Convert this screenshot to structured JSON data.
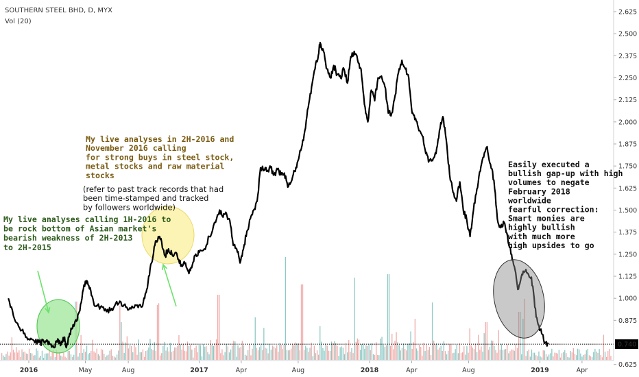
{
  "chart_data": {
    "type": "line",
    "title": "SOUTHERN STEEL BHD, D, MYX",
    "volume_label": "Vol (20)",
    "price_label": {
      "value": "0.740",
      "price": 0.74
    },
    "y_ticks": [
      "2.625",
      "2.500",
      "2.375",
      "2.250",
      "2.125",
      "2.000",
      "1.875",
      "1.750",
      "1.625",
      "1.500",
      "1.375",
      "1.250",
      "1.125",
      "1.000",
      "0.875",
      "0.625"
    ],
    "ylim": [
      0.6,
      2.68
    ],
    "x_ticks": [
      {
        "label": "2016",
        "year": true,
        "t": 0
      },
      {
        "label": "May",
        "year": false,
        "t": 0.332
      },
      {
        "label": "Aug",
        "year": false,
        "t": 0.584
      },
      {
        "label": "2017",
        "year": true,
        "t": 1.0
      },
      {
        "label": "Apr",
        "year": false,
        "t": 1.247
      },
      {
        "label": "Aug",
        "year": false,
        "t": 1.581
      },
      {
        "label": "2018",
        "year": true,
        "t": 2.0
      },
      {
        "label": "Apr",
        "year": false,
        "t": 2.247
      },
      {
        "label": "Aug",
        "year": false,
        "t": 2.581
      },
      {
        "label": "2019",
        "year": true,
        "t": 3.0
      },
      {
        "label": "Apr",
        "year": false,
        "t": 3.247
      }
    ],
    "series": [
      {
        "values": [
          [
            -0.12,
            1.0
          ],
          [
            -0.09,
            0.9
          ],
          [
            -0.06,
            0.84
          ],
          [
            -0.03,
            0.8
          ],
          [
            0.0,
            0.77
          ],
          [
            0.03,
            0.76
          ],
          [
            0.06,
            0.75
          ],
          [
            0.09,
            0.75
          ],
          [
            0.11,
            0.76
          ],
          [
            0.13,
            0.74
          ],
          [
            0.15,
            0.72
          ],
          [
            0.17,
            0.77
          ],
          [
            0.19,
            0.74
          ],
          [
            0.21,
            0.78
          ],
          [
            0.22,
            0.72
          ],
          [
            0.24,
            0.8
          ],
          [
            0.26,
            0.85
          ],
          [
            0.28,
            0.87
          ],
          [
            0.3,
            0.93
          ],
          [
            0.32,
            1.05
          ],
          [
            0.34,
            1.1
          ],
          [
            0.36,
            1.06
          ],
          [
            0.38,
            0.98
          ],
          [
            0.4,
            0.96
          ],
          [
            0.42,
            0.95
          ],
          [
            0.45,
            0.94
          ],
          [
            0.48,
            0.93
          ],
          [
            0.51,
            0.97
          ],
          [
            0.54,
            0.98
          ],
          [
            0.57,
            0.95
          ],
          [
            0.6,
            0.94
          ],
          [
            0.63,
            0.96
          ],
          [
            0.66,
            0.95
          ],
          [
            0.68,
            1.0
          ],
          [
            0.7,
            1.09
          ],
          [
            0.72,
            1.2
          ],
          [
            0.74,
            1.3
          ],
          [
            0.76,
            1.35
          ],
          [
            0.78,
            1.32
          ],
          [
            0.8,
            1.24
          ],
          [
            0.82,
            1.28
          ],
          [
            0.84,
            1.25
          ],
          [
            0.86,
            1.26
          ],
          [
            0.88,
            1.22
          ],
          [
            0.9,
            1.18
          ],
          [
            0.92,
            1.2
          ],
          [
            0.94,
            1.14
          ],
          [
            0.96,
            1.19
          ],
          [
            0.98,
            1.25
          ],
          [
            1.0,
            1.26
          ],
          [
            1.03,
            1.28
          ],
          [
            1.06,
            1.35
          ],
          [
            1.09,
            1.43
          ],
          [
            1.12,
            1.5
          ],
          [
            1.14,
            1.46
          ],
          [
            1.16,
            1.48
          ],
          [
            1.18,
            1.44
          ],
          [
            1.2,
            1.3
          ],
          [
            1.22,
            1.28
          ],
          [
            1.24,
            1.2
          ],
          [
            1.26,
            1.28
          ],
          [
            1.28,
            1.38
          ],
          [
            1.3,
            1.45
          ],
          [
            1.32,
            1.5
          ],
          [
            1.34,
            1.55
          ],
          [
            1.36,
            1.74
          ],
          [
            1.38,
            1.73
          ],
          [
            1.4,
            1.72
          ],
          [
            1.42,
            1.74
          ],
          [
            1.44,
            1.7
          ],
          [
            1.46,
            1.73
          ],
          [
            1.48,
            1.7
          ],
          [
            1.5,
            1.71
          ],
          [
            1.52,
            1.63
          ],
          [
            1.54,
            1.66
          ],
          [
            1.56,
            1.72
          ],
          [
            1.58,
            1.78
          ],
          [
            1.6,
            1.85
          ],
          [
            1.62,
            1.95
          ],
          [
            1.64,
            2.08
          ],
          [
            1.66,
            2.2
          ],
          [
            1.68,
            2.3
          ],
          [
            1.7,
            2.38
          ],
          [
            1.71,
            2.45
          ],
          [
            1.73,
            2.4
          ],
          [
            1.75,
            2.3
          ],
          [
            1.77,
            2.25
          ],
          [
            1.79,
            2.32
          ],
          [
            1.81,
            2.27
          ],
          [
            1.83,
            2.25
          ],
          [
            1.85,
            2.3
          ],
          [
            1.87,
            2.22
          ],
          [
            1.89,
            2.37
          ],
          [
            1.91,
            2.4
          ],
          [
            1.93,
            2.35
          ],
          [
            1.95,
            2.3
          ],
          [
            1.97,
            2.1
          ],
          [
            1.99,
            2.0
          ],
          [
            2.01,
            2.18
          ],
          [
            2.03,
            2.12
          ],
          [
            2.05,
            2.25
          ],
          [
            2.07,
            2.26
          ],
          [
            2.09,
            2.2
          ],
          [
            2.11,
            2.05
          ],
          [
            2.13,
            2.05
          ],
          [
            2.15,
            2.15
          ],
          [
            2.17,
            2.28
          ],
          [
            2.19,
            2.35
          ],
          [
            2.21,
            2.3
          ],
          [
            2.23,
            2.25
          ],
          [
            2.25,
            2.05
          ],
          [
            2.27,
            2.02
          ],
          [
            2.29,
            1.95
          ],
          [
            2.31,
            1.92
          ],
          [
            2.33,
            1.82
          ],
          [
            2.35,
            1.78
          ],
          [
            2.37,
            1.78
          ],
          [
            2.39,
            1.82
          ],
          [
            2.41,
            1.95
          ],
          [
            2.43,
            2.03
          ],
          [
            2.45,
            1.9
          ],
          [
            2.47,
            1.7
          ],
          [
            2.49,
            1.6
          ],
          [
            2.51,
            1.55
          ],
          [
            2.53,
            1.66
          ],
          [
            2.55,
            1.5
          ],
          [
            2.57,
            1.45
          ],
          [
            2.59,
            1.35
          ],
          [
            2.61,
            1.5
          ],
          [
            2.63,
            1.62
          ],
          [
            2.65,
            1.72
          ],
          [
            2.67,
            1.8
          ],
          [
            2.69,
            1.86
          ],
          [
            2.71,
            1.76
          ],
          [
            2.73,
            1.67
          ],
          [
            2.75,
            1.45
          ],
          [
            2.77,
            1.4
          ],
          [
            2.79,
            1.43
          ],
          [
            2.81,
            1.35
          ],
          [
            2.83,
            1.25
          ],
          [
            2.85,
            1.18
          ],
          [
            2.87,
            1.05
          ],
          [
            2.89,
            1.12
          ],
          [
            2.91,
            1.15
          ],
          [
            2.93,
            1.14
          ],
          [
            2.95,
            1.12
          ],
          [
            2.97,
            0.95
          ],
          [
            2.99,
            0.85
          ],
          [
            3.01,
            0.8
          ],
          [
            3.03,
            0.75
          ],
          [
            3.05,
            0.74
          ]
        ]
      }
    ],
    "volume": {
      "colors": {
        "up": "#8ec9c4",
        "down": "#f0aaa8"
      },
      "max": 100
    },
    "colors": {
      "line": "#000000",
      "grid_price": "#000000",
      "axis_label_bg": "#000000"
    },
    "annotations": [
      {
        "color": "#2e5b1d",
        "lines": [
          "My live analyses calling 1H-2016 to",
          "be rock bottom of Asian market's",
          "bearish weakness of 2H-2013",
          "to 2H-2015"
        ]
      },
      {
        "color": "#7a5b12",
        "lines": [
          "My live analyses in 2H-2016 and",
          "November 2016 calling",
          "for strong buys in steel stock,",
          "metal stocks and raw material",
          "stocks"
        ]
      },
      {
        "color": "#111111",
        "lines": [
          "(refer to past track records that had",
          "been time-stamped and tracked",
          "by followers worldwide)"
        ]
      },
      {
        "color": "#111111",
        "lines": [
          "Easily executed a",
          "bullish gap-up with high",
          "volumes to negate",
          "February 2018",
          "worldwide",
          "fearful correction:",
          "Smart monies are",
          "highly bullish",
          "with much more",
          "high upsides to go"
        ]
      }
    ]
  }
}
